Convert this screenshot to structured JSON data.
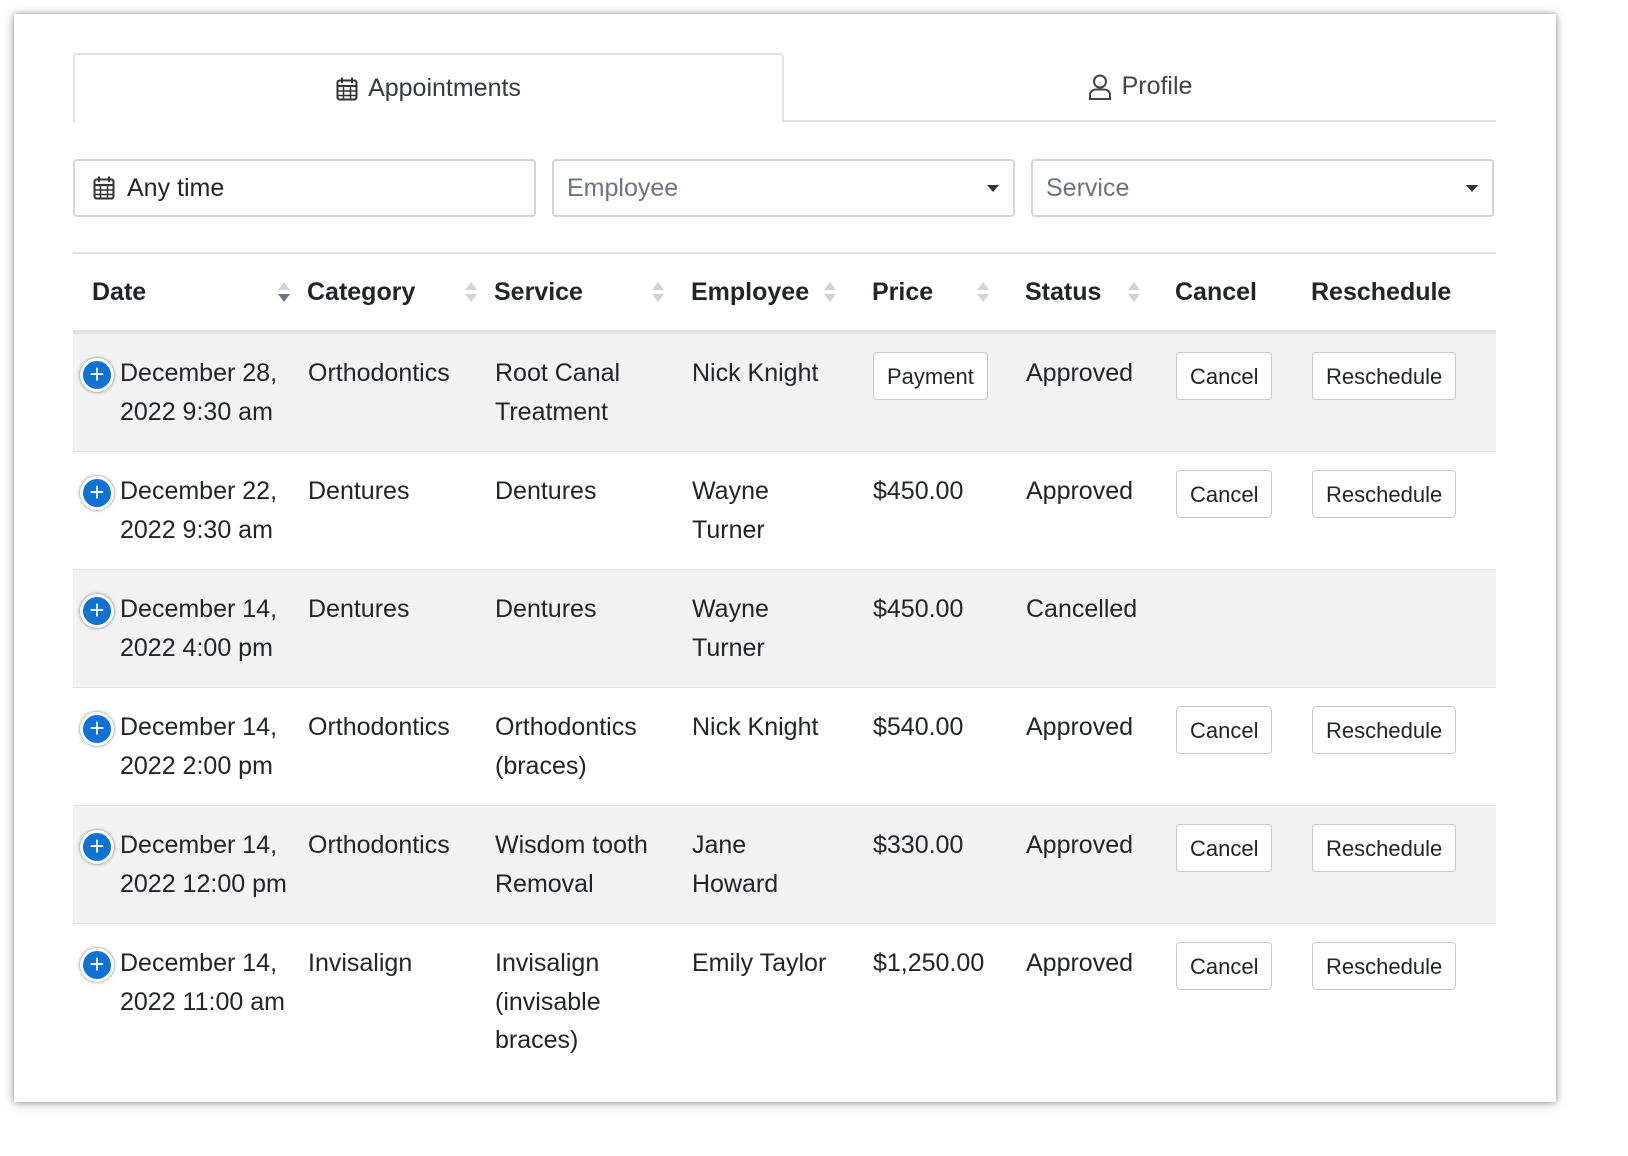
{
  "tabs": [
    {
      "label": "Appointments",
      "icon": "calendar-icon",
      "active": true
    },
    {
      "label": "Profile",
      "icon": "user-icon",
      "active": false
    }
  ],
  "filters": {
    "date": {
      "value": "Any time",
      "icon": "calendar-icon"
    },
    "employee": {
      "placeholder": "Employee"
    },
    "service": {
      "placeholder": "Service"
    }
  },
  "table": {
    "headers": [
      "Date",
      "Category",
      "Service",
      "Employee",
      "Price",
      "Status",
      "Cancel",
      "Reschedule"
    ],
    "rows": [
      {
        "date": "December 28, 2022 9:30 am",
        "category": "Orthodontics",
        "service": "Root Canal Treatment",
        "employee": "Nick Knight",
        "price": "",
        "payment_label": "Payment",
        "status": "Approved",
        "cancel_label": "Cancel",
        "reschedule_label": "Reschedule"
      },
      {
        "date": "December 22, 2022 9:30 am",
        "category": "Dentures",
        "service": "Dentures",
        "employee": "Wayne Turner",
        "price": "$450.00",
        "status": "Approved",
        "cancel_label": "Cancel",
        "reschedule_label": "Reschedule"
      },
      {
        "date": "December 14, 2022 4:00 pm",
        "category": "Dentures",
        "service": "Dentures",
        "employee": "Wayne Turner",
        "price": "$450.00",
        "status": "Cancelled",
        "cancel_label": "",
        "reschedule_label": ""
      },
      {
        "date": "December 14, 2022 2:00 pm",
        "category": "Orthodontics",
        "service": "Orthodontics (braces)",
        "employee": "Nick Knight",
        "price": "$540.00",
        "status": "Approved",
        "cancel_label": "Cancel",
        "reschedule_label": "Reschedule"
      },
      {
        "date": "December 14, 2022 12:00 pm",
        "category": "Orthodontics",
        "service": "Wisdom tooth Removal",
        "employee": "Jane Howard",
        "price": "$330.00",
        "status": "Approved",
        "cancel_label": "Cancel",
        "reschedule_label": "Reschedule"
      },
      {
        "date": "December 14, 2022 11:00 am",
        "category": "Invisalign",
        "service": "Invisalign (invisable braces)",
        "employee": "Emily Taylor",
        "price": "$1,250.00",
        "status": "Approved",
        "cancel_label": "Cancel",
        "reschedule_label": "Reschedule"
      }
    ]
  },
  "colors": {
    "accent": "#0d72d6",
    "stripe": "#f2f2f2",
    "border": "#dee2e6"
  }
}
